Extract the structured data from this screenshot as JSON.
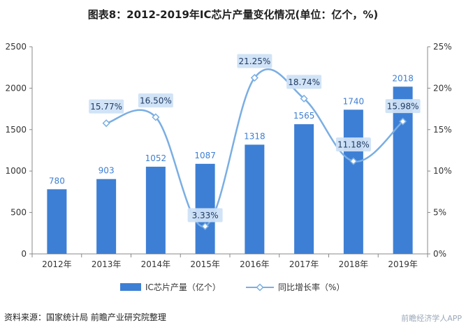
{
  "title": "图表8：2012-2019年IC芯片产量变化情况(单位：亿个，%)",
  "source": "资料来源：国家统计局 前瞻产业研究院整理",
  "watermark": "前瞻经济学人APP",
  "colors": {
    "bar": "#3d7fd4",
    "line": "#7aaee3",
    "label_box": "#cfe2f5",
    "axis": "#888888",
    "text": "#333333"
  },
  "chart_data": {
    "type": "bar",
    "categories": [
      "2012年",
      "2013年",
      "2014年",
      "2015年",
      "2016年",
      "2017年",
      "2018年",
      "2019年"
    ],
    "series": [
      {
        "name": "IC芯片产量（亿个）",
        "type": "bar",
        "axis": "left",
        "values": [
          780,
          903,
          1052,
          1087,
          1318,
          1565,
          1740,
          2018
        ],
        "labels": [
          "780",
          "903",
          "1052",
          "1087",
          "1318",
          "1565",
          "1740",
          "2018"
        ]
      },
      {
        "name": "同比增长率（%）",
        "type": "line",
        "axis": "right",
        "values": [
          null,
          15.77,
          16.5,
          3.33,
          21.25,
          18.74,
          11.18,
          15.98
        ],
        "labels": [
          "",
          "15.77%",
          "16.50%",
          "3.33%",
          "21.25%",
          "18.74%",
          "11.18%",
          "15.98%"
        ]
      }
    ],
    "y_left": {
      "range": [
        0,
        2500
      ],
      "ticks": [
        "0",
        "500",
        "1000",
        "1500",
        "2000",
        "2500"
      ]
    },
    "y_right": {
      "range": [
        0,
        25
      ],
      "ticks": [
        "0%",
        "5%",
        "10%",
        "15%",
        "20%",
        "25%"
      ]
    },
    "grid": false,
    "legend": "bottom"
  }
}
